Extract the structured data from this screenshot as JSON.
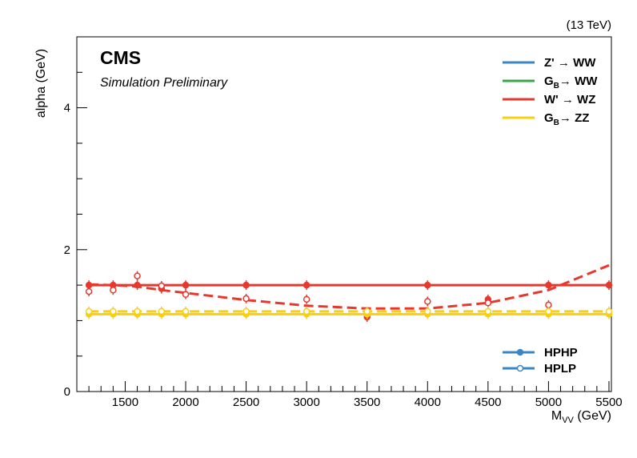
{
  "chart_data": {
    "type": "line",
    "energy_label": "(13 TeV)",
    "experiment": "CMS",
    "status": "Simulation Preliminary",
    "ylabel": "alpha (GeV)",
    "xlabel_main": "M",
    "xlabel_sub": "VV",
    "xlabel_unit": " (GeV)",
    "xlim": [
      1100,
      5520
    ],
    "ylim": [
      0,
      5
    ],
    "x_ticks": [
      1500,
      2000,
      2500,
      3000,
      3500,
      4000,
      4500,
      5000,
      5500
    ],
    "y_ticks": [
      0,
      2,
      4
    ],
    "x": [
      1200,
      1400,
      1600,
      1800,
      2000,
      2500,
      3000,
      3500,
      4000,
      4500,
      5000,
      5500
    ],
    "legend_process": [
      {
        "label": "Z' → WW",
        "color": "#3a87c4"
      },
      {
        "label_main": "G",
        "label_sub": "B",
        "label_rest": "→ WW",
        "color": "#3aa64a"
      },
      {
        "label": "W' → WZ",
        "color": "#e8382e"
      },
      {
        "label_main": "G",
        "label_sub": "B",
        "label_rest": "→ ZZ",
        "color": "#f8d010"
      }
    ],
    "legend_category": [
      {
        "label": "HPHP",
        "marker": "filled",
        "color": "#3a87c4"
      },
      {
        "label": "HPLP",
        "marker": "open",
        "color": "#3a87c4"
      }
    ],
    "series": [
      {
        "process": "W' → WZ",
        "category": "HPHP",
        "style": "solid",
        "color": "#e8382e",
        "fit": [
          1.5,
          1.5,
          1.5,
          1.5,
          1.5,
          1.5,
          1.5,
          1.5,
          1.5,
          1.5,
          1.5,
          1.5
        ],
        "points": [
          1.5,
          1.5,
          1.5,
          1.45,
          1.5,
          1.5,
          1.5,
          1.05,
          1.5,
          1.3,
          1.5,
          1.5
        ]
      },
      {
        "process": "W' → WZ",
        "category": "HPLP",
        "style": "dashed",
        "color": "#e8382e",
        "fit": [
          1.51,
          1.5,
          1.48,
          1.43,
          1.39,
          1.29,
          1.21,
          1.17,
          1.17,
          1.25,
          1.43,
          1.78
        ],
        "points": [
          1.41,
          1.43,
          1.63,
          1.49,
          1.37,
          1.31,
          1.3,
          null,
          1.27,
          1.25,
          1.22,
          null
        ]
      },
      {
        "process": "G_B → ZZ",
        "category": "HPHP",
        "style": "solid",
        "color": "#f8d010",
        "fit": [
          1.09,
          1.09,
          1.09,
          1.09,
          1.09,
          1.09,
          1.09,
          1.09,
          1.09,
          1.09,
          1.09,
          1.09
        ],
        "points": [
          1.09,
          1.09,
          1.09,
          1.09,
          1.09,
          1.09,
          1.09,
          1.09,
          1.09,
          1.09,
          1.09,
          1.09
        ]
      },
      {
        "process": "G_B → ZZ",
        "category": "HPLP",
        "style": "dashed",
        "color": "#f8d010",
        "fit": [
          1.13,
          1.13,
          1.13,
          1.13,
          1.13,
          1.13,
          1.13,
          1.13,
          1.13,
          1.13,
          1.13,
          1.13
        ],
        "points": [
          1.13,
          1.13,
          1.13,
          1.13,
          1.13,
          1.13,
          1.13,
          1.13,
          1.13,
          1.13,
          1.13,
          1.13
        ]
      }
    ]
  }
}
